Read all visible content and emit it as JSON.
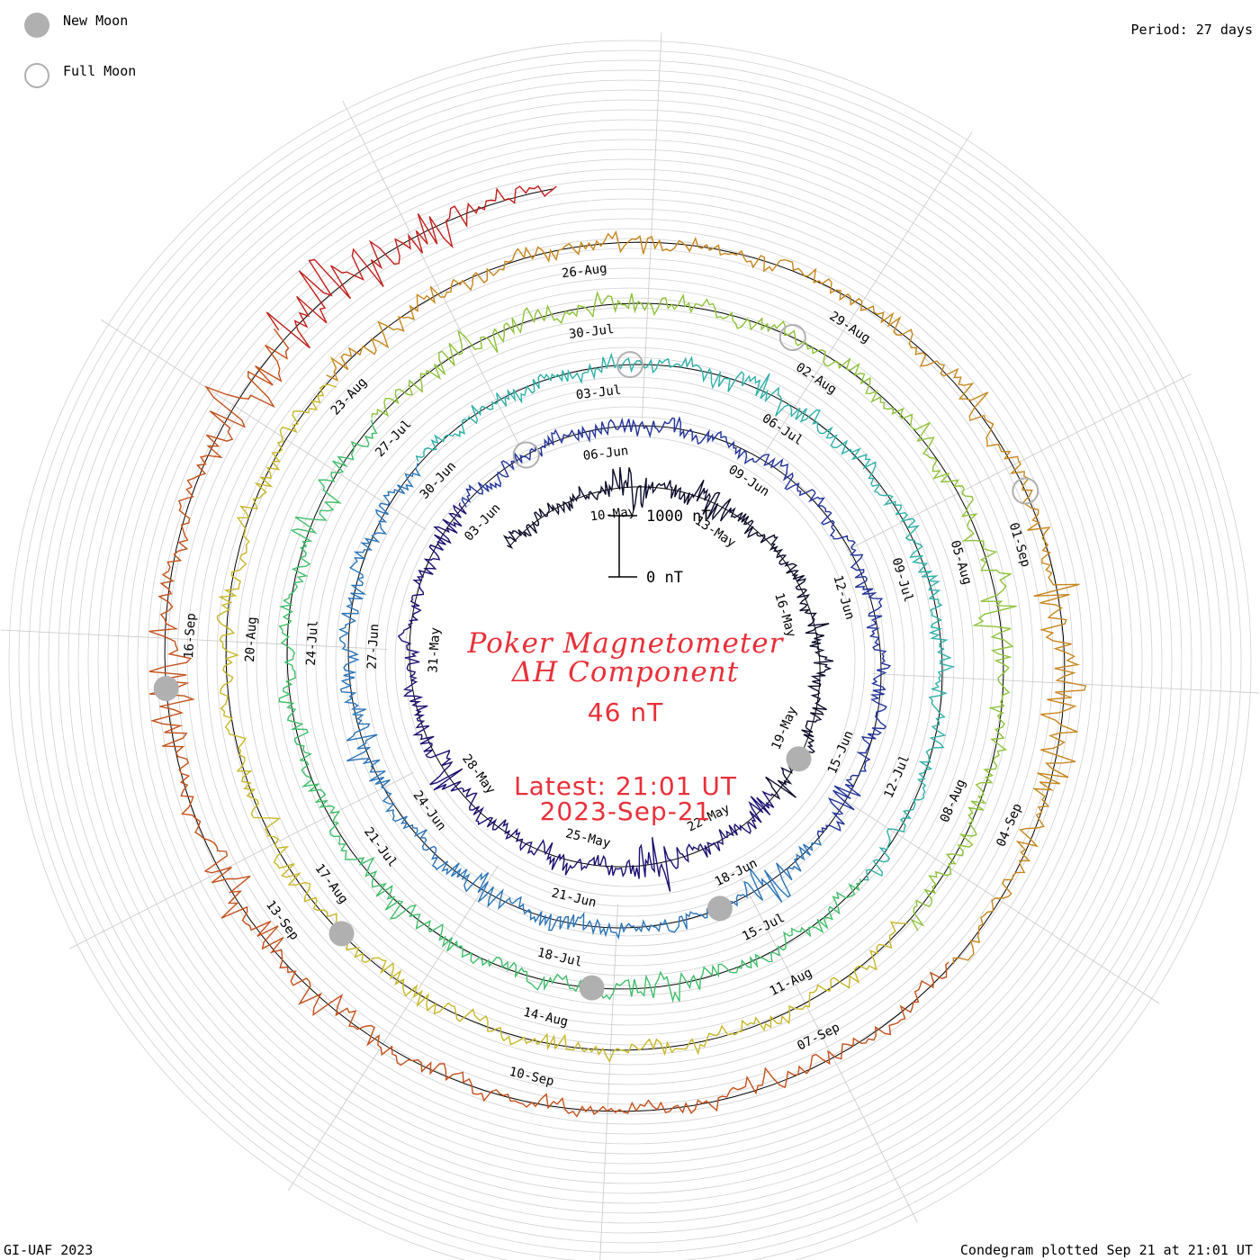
{
  "legend": {
    "new_moon": {
      "label": "New Moon",
      "color": "#b0b0b0"
    },
    "full_moon": {
      "label": "Full Moon",
      "color": "#b0b0b0"
    }
  },
  "period_label": "Period: 27 days",
  "footer_left": "GI-UAF 2023",
  "footer_right": "Condegram plotted Sep 21 at 21:01 UT",
  "title": {
    "line1": "Poker Magnetometer",
    "line2": "ΔH Component",
    "value": "46 nT",
    "latest": "Latest: 21:01 UT",
    "date": "2023-Sep-21",
    "color": "#e8303a"
  },
  "scale_bar": {
    "top_label": "1000 nT",
    "bottom_label": "0 nT"
  },
  "chart_data": {
    "type": "line",
    "period_days": 27,
    "grid": true,
    "start_date": "2023-05-07",
    "end_date": "2023-09-21",
    "date_labels": [
      "10-May",
      "13-May",
      "16-May",
      "19-May",
      "22-May",
      "25-May",
      "28-May",
      "31-May",
      "03-Jun",
      "06-Jun",
      "09-Jun",
      "12-Jun",
      "15-Jun",
      "18-Jun",
      "21-Jun",
      "24-Jun",
      "27-Jun",
      "30-Jun",
      "03-Jul",
      "06-Jul",
      "09-Jul",
      "12-Jul",
      "15-Jul",
      "18-Jul",
      "21-Jul",
      "24-Jul",
      "27-Jul",
      "30-Jul",
      "02-Aug",
      "05-Aug",
      "08-Aug",
      "11-Aug",
      "14-Aug",
      "17-Aug",
      "20-Aug",
      "23-Aug",
      "26-Aug",
      "29-Aug",
      "01-Sep",
      "04-Sep",
      "07-Sep",
      "10-Sep",
      "13-Sep",
      "16-Sep"
    ],
    "new_moon_dates": [
      "2023-05-19",
      "2023-06-18",
      "2023-07-17",
      "2023-08-16",
      "2023-09-15"
    ],
    "full_moon_dates": [
      "2023-06-04",
      "2023-07-03",
      "2023-08-01",
      "2023-08-31"
    ],
    "series_colors": [
      "#0b0b2a",
      "#1a1070",
      "#22339a",
      "#2b75b8",
      "#2fb0a8",
      "#3fbe6a",
      "#8fc23a",
      "#c8b728",
      "#c7861c",
      "#c4501a",
      "#c0201c"
    ],
    "disturbances": [
      {
        "date": "2023-05-10",
        "amplitude": 200
      },
      {
        "date": "2023-05-12",
        "amplitude": 150
      },
      {
        "date": "2023-05-16",
        "amplitude": 120
      },
      {
        "date": "2023-05-20",
        "amplitude": 200
      },
      {
        "date": "2023-05-23",
        "amplitude": 250
      },
      {
        "date": "2023-05-25",
        "amplitude": 120
      },
      {
        "date": "2023-05-28",
        "amplitude": 150
      },
      {
        "date": "2023-06-02",
        "amplitude": 120
      },
      {
        "date": "2023-06-15",
        "amplitude": 150
      },
      {
        "date": "2023-06-17",
        "amplitude": 250
      },
      {
        "date": "2023-06-22",
        "amplitude": 120
      },
      {
        "date": "2023-06-25",
        "amplitude": 150
      },
      {
        "date": "2023-07-05",
        "amplitude": 150
      },
      {
        "date": "2023-07-16",
        "amplitude": 150
      },
      {
        "date": "2023-07-20",
        "amplitude": 120
      },
      {
        "date": "2023-07-25",
        "amplitude": 130
      },
      {
        "date": "2023-07-28",
        "amplitude": 140
      },
      {
        "date": "2023-07-30",
        "amplitude": 120
      },
      {
        "date": "2023-08-03",
        "amplitude": 150
      },
      {
        "date": "2023-08-05",
        "amplitude": 250
      },
      {
        "date": "2023-08-09",
        "amplitude": 150
      },
      {
        "date": "2023-08-17",
        "amplitude": 120
      },
      {
        "date": "2023-08-23",
        "amplitude": 150
      },
      {
        "date": "2023-08-26",
        "amplitude": 100
      },
      {
        "date": "2023-08-30",
        "amplitude": 120
      },
      {
        "date": "2023-09-01",
        "amplitude": 200
      },
      {
        "date": "2023-09-02",
        "amplitude": 250
      },
      {
        "date": "2023-09-03",
        "amplitude": 200
      },
      {
        "date": "2023-09-07",
        "amplitude": 150
      },
      {
        "date": "2023-09-12",
        "amplitude": 200
      },
      {
        "date": "2023-09-13",
        "amplitude": 250
      },
      {
        "date": "2023-09-15",
        "amplitude": 300
      },
      {
        "date": "2023-09-18",
        "amplitude": 450
      },
      {
        "date": "2023-09-19",
        "amplitude": 400
      },
      {
        "date": "2023-09-20",
        "amplitude": 350
      }
    ]
  }
}
